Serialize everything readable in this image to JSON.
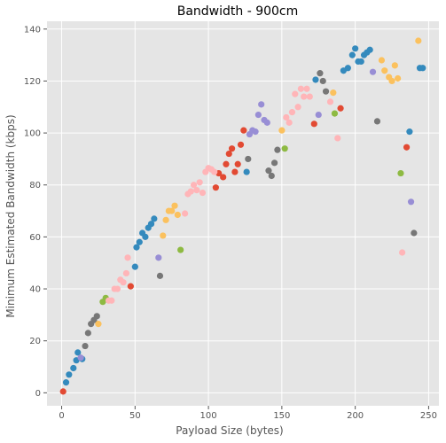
{
  "chart_data": {
    "type": "scatter",
    "title": "Bandwidth - 900cm",
    "xlabel": "Payload Size (bytes)",
    "ylabel": "Minimum Estimated Bandwidth (kbps)",
    "xlim": [
      -10,
      257
    ],
    "ylim": [
      -5,
      143
    ],
    "xticks": [
      0,
      50,
      100,
      150,
      200,
      250
    ],
    "yticks": [
      0,
      20,
      40,
      60,
      80,
      100,
      120,
      140
    ],
    "grid": true,
    "legend": "none",
    "background": "#E5E5E5",
    "grid_color": "#FFFFFF",
    "series": [
      {
        "color": "#348ABD",
        "points": [
          [
            3,
            4
          ],
          [
            5,
            7
          ],
          [
            8,
            9.5
          ],
          [
            10,
            12.5
          ],
          [
            11,
            15.5
          ],
          [
            14,
            13
          ],
          [
            50,
            48.5
          ],
          [
            51,
            56
          ],
          [
            53,
            58
          ],
          [
            55,
            61.5
          ],
          [
            57,
            60
          ],
          [
            59,
            63.5
          ],
          [
            61,
            65
          ],
          [
            63,
            67
          ],
          [
            126,
            85
          ],
          [
            173,
            120.5
          ],
          [
            192,
            124
          ],
          [
            195,
            125
          ],
          [
            198,
            130
          ],
          [
            200,
            132.5
          ],
          [
            202,
            127.5
          ],
          [
            204,
            127.5
          ],
          [
            206,
            130
          ],
          [
            208,
            131
          ],
          [
            210,
            132
          ],
          [
            237,
            100.5
          ],
          [
            244,
            125
          ],
          [
            246,
            125
          ]
        ]
      },
      {
        "color": "#E24A33",
        "points": [
          [
            1,
            0.5
          ],
          [
            47,
            41
          ],
          [
            105,
            79
          ],
          [
            107,
            84.5
          ],
          [
            110,
            83
          ],
          [
            112,
            88
          ],
          [
            114,
            92
          ],
          [
            116,
            94
          ],
          [
            118,
            85
          ],
          [
            120,
            88
          ],
          [
            122,
            95.5
          ],
          [
            124,
            101
          ],
          [
            172,
            103.5
          ],
          [
            190,
            109.5
          ],
          [
            235,
            94.5
          ]
        ]
      },
      {
        "color": "#988ED5",
        "points": [
          [
            13,
            13.5
          ],
          [
            66,
            52
          ],
          [
            128,
            99.5
          ],
          [
            130,
            101
          ],
          [
            132,
            100.5
          ],
          [
            134,
            107
          ],
          [
            136,
            111
          ],
          [
            138,
            105
          ],
          [
            140,
            104
          ],
          [
            175,
            107
          ],
          [
            212,
            123.5
          ],
          [
            238,
            73.5
          ]
        ]
      },
      {
        "color": "#777777",
        "points": [
          [
            16,
            18
          ],
          [
            18,
            23
          ],
          [
            20,
            26.5
          ],
          [
            22,
            28
          ],
          [
            24,
            29.5
          ],
          [
            67,
            45
          ],
          [
            127,
            90
          ],
          [
            141,
            85.5
          ],
          [
            143,
            83.5
          ],
          [
            145,
            88.5
          ],
          [
            147,
            93.5
          ],
          [
            176,
            123
          ],
          [
            178,
            120
          ],
          [
            180,
            116
          ],
          [
            215,
            104.5
          ],
          [
            240,
            61.5
          ]
        ]
      },
      {
        "color": "#FBC15E",
        "points": [
          [
            25,
            26.5
          ],
          [
            69,
            60.5
          ],
          [
            71,
            66.5
          ],
          [
            73,
            70
          ],
          [
            75,
            70
          ],
          [
            77,
            72
          ],
          [
            79,
            68.5
          ],
          [
            150,
            101
          ],
          [
            185,
            115.5
          ],
          [
            218,
            128
          ],
          [
            220,
            124
          ],
          [
            223,
            121.5
          ],
          [
            225,
            120
          ],
          [
            227,
            126
          ],
          [
            229,
            121
          ],
          [
            243,
            135.5
          ]
        ]
      },
      {
        "color": "#8EBA42",
        "points": [
          [
            28,
            35
          ],
          [
            30,
            36.5
          ],
          [
            81,
            55
          ],
          [
            152,
            94
          ],
          [
            186,
            107.5
          ],
          [
            231,
            84.5
          ]
        ]
      },
      {
        "color": "#FFB5B8",
        "points": [
          [
            32,
            35.5
          ],
          [
            34,
            35.5
          ],
          [
            36,
            40
          ],
          [
            38,
            40
          ],
          [
            40,
            43.5
          ],
          [
            42,
            42.5
          ],
          [
            44,
            46
          ],
          [
            45,
            52
          ],
          [
            84,
            69
          ],
          [
            86,
            76.5
          ],
          [
            88,
            77.5
          ],
          [
            90,
            80
          ],
          [
            92,
            78
          ],
          [
            94,
            81
          ],
          [
            96,
            77
          ],
          [
            98,
            85
          ],
          [
            100,
            86.5
          ],
          [
            102,
            86
          ],
          [
            104,
            85
          ],
          [
            153,
            106
          ],
          [
            155,
            104
          ],
          [
            157,
            108
          ],
          [
            159,
            115
          ],
          [
            161,
            110
          ],
          [
            163,
            117
          ],
          [
            165,
            114
          ],
          [
            167,
            117
          ],
          [
            169,
            114
          ],
          [
            183,
            112
          ],
          [
            188,
            98
          ],
          [
            232,
            54
          ]
        ]
      }
    ]
  }
}
